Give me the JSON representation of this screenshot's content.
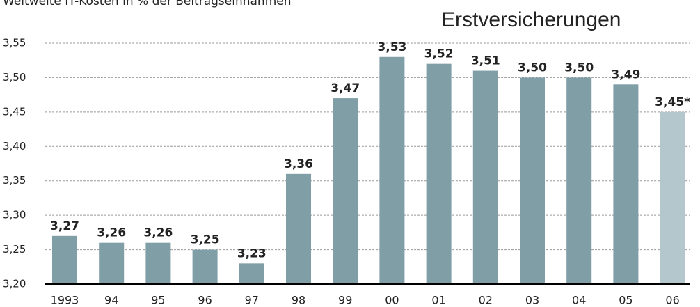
{
  "chart_data": {
    "type": "bar",
    "title": "Erstversicherungen",
    "subtitle": "Weltweite IT-Kosten in % der Beitragseinnahmen",
    "categories": [
      "1993",
      "94",
      "95",
      "96",
      "97",
      "98",
      "99",
      "00",
      "01",
      "02",
      "03",
      "04",
      "05",
      "06"
    ],
    "values": [
      3.27,
      3.26,
      3.26,
      3.25,
      3.23,
      3.36,
      3.47,
      3.53,
      3.52,
      3.51,
      3.5,
      3.5,
      3.49,
      3.45
    ],
    "value_labels": [
      "3,27",
      "3,26",
      "3,26",
      "3,25",
      "3,23",
      "3,36",
      "3,47",
      "3,53",
      "3,52",
      "3,51",
      "3,50",
      "3,50",
      "3,49",
      "3,45*"
    ],
    "colors": [
      "#7f9ea6",
      "#7f9ea6",
      "#7f9ea6",
      "#7f9ea6",
      "#7f9ea6",
      "#7f9ea6",
      "#7f9ea6",
      "#7f9ea6",
      "#7f9ea6",
      "#7f9ea6",
      "#7f9ea6",
      "#7f9ea6",
      "#7f9ea6",
      "#b3c7cc"
    ],
    "ylim": [
      3.2,
      3.55
    ],
    "yticks": [
      {
        "value": 3.2,
        "label": "3,20"
      },
      {
        "value": 3.25,
        "label": "3,25"
      },
      {
        "value": 3.3,
        "label": "3,30"
      },
      {
        "value": 3.35,
        "label": "3,35"
      },
      {
        "value": 3.4,
        "label": "3,40"
      },
      {
        "value": 3.45,
        "label": "3,45"
      },
      {
        "value": 3.5,
        "label": "3,50"
      },
      {
        "value": 3.55,
        "label": "3,55"
      }
    ],
    "grid": true
  }
}
